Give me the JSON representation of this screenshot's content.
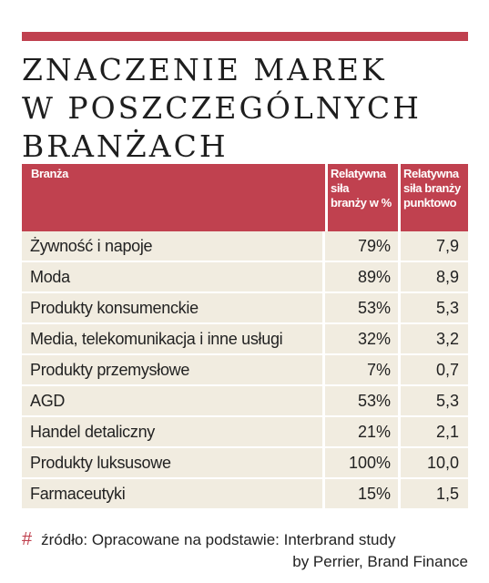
{
  "colors": {
    "accent": "#c0414f",
    "row_bg": "#f1ece0",
    "text": "#222222"
  },
  "title_lines": [
    "ZNACZENIE MAREK",
    "W POSZCZEGÓLNYCH",
    "BRANŻACH"
  ],
  "source": {
    "icon": "hash-icon",
    "symbol": "#",
    "line1": "źródło: Opracowane na podstawie: Interbrand study",
    "line2": "by Perrier, Brand Finance"
  },
  "chart_data": {
    "type": "table",
    "title": "ZNACZENIE MAREK W POSZCZEGÓLNYCH BRANŻACH",
    "columns": [
      [
        "Branża"
      ],
      [
        "Relatywna",
        "siła",
        "branży w %"
      ],
      [
        "Relatywna",
        "siła branży",
        "punktowo"
      ]
    ],
    "rows": [
      [
        "Żywność i napoje",
        "79%",
        "7,9"
      ],
      [
        "Moda",
        "89%",
        "8,9"
      ],
      [
        "Produkty konsumenckie",
        "53%",
        "5,3"
      ],
      [
        "Media, telekomunikacja i inne usługi",
        "32%",
        "3,2"
      ],
      [
        "Produkty przemysłowe",
        "7%",
        "0,7"
      ],
      [
        "AGD",
        "53%",
        "5,3"
      ],
      [
        "Handel detaliczny",
        "21%",
        "2,1"
      ],
      [
        "Produkty luksusowe",
        "100%",
        "10,0"
      ],
      [
        "Farmaceutyki",
        "15%",
        "1,5"
      ]
    ]
  }
}
